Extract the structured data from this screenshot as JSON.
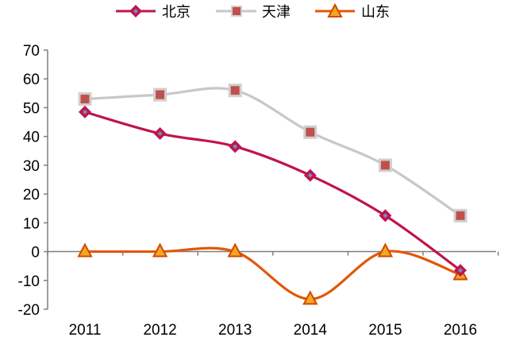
{
  "chart_data": {
    "type": "line",
    "x": [
      "2011",
      "2012",
      "2013",
      "2014",
      "2015",
      "2016"
    ],
    "ylim": [
      -20,
      70
    ],
    "yticks": [
      -20,
      -10,
      0,
      10,
      20,
      30,
      40,
      50,
      60,
      70
    ],
    "grid": false,
    "legend_position": "top",
    "series": [
      {
        "name": "北京",
        "values": [
          48.5,
          41,
          36.5,
          26.5,
          12.5,
          -6.5
        ],
        "color": "#c0144c",
        "marker": "diamond",
        "smooth": true
      },
      {
        "name": "天津",
        "values": [
          53,
          54.5,
          56,
          41.5,
          30,
          12.5
        ],
        "color": "#c8c8c8",
        "marker": "square",
        "marker_color": "#c0504d",
        "smooth": true
      },
      {
        "name": "山东",
        "values": [
          0,
          0,
          0,
          -16.5,
          0,
          -8
        ],
        "color": "#e0580a",
        "marker": "triangle",
        "smooth": true
      }
    ]
  }
}
